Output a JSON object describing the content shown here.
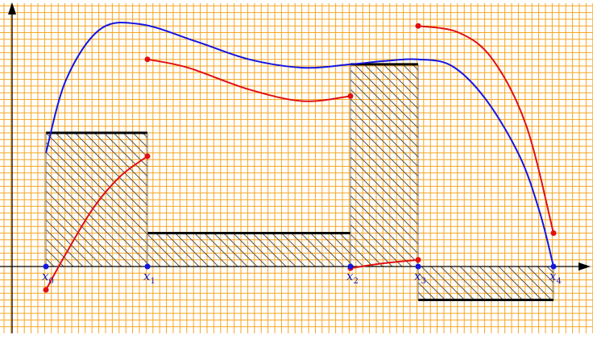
{
  "chart_data": {
    "type": "diagram",
    "title": "",
    "grid": true,
    "colors": {
      "grid": "#f5a623",
      "axes": "#000000",
      "curve": "#1515e0",
      "pieces": "#e01010",
      "bars": "#000000",
      "hatch": "#555555",
      "nodes": "#1515e0"
    },
    "nodes": [
      {
        "label": "x",
        "sub": "0",
        "x": 0
      },
      {
        "label": "x",
        "sub": "1",
        "x": 1.5
      },
      {
        "label": "x",
        "sub": "2",
        "x": 4.5
      },
      {
        "label": "x",
        "sub": "3",
        "x": 5.5
      },
      {
        "label": "x",
        "sub": "4",
        "x": 7.5
      }
    ],
    "curve": [
      [
        0,
        3.4
      ],
      [
        0.3,
        5.6
      ],
      [
        0.8,
        7.1
      ],
      [
        1.4,
        7.25
      ],
      [
        2.2,
        6.75
      ],
      [
        3.0,
        6.2
      ],
      [
        3.8,
        5.95
      ],
      [
        4.5,
        6.05
      ],
      [
        5.0,
        6.15
      ],
      [
        5.5,
        6.2
      ],
      [
        6.0,
        6.0
      ],
      [
        6.5,
        5.0
      ],
      [
        7.0,
        3.3
      ],
      [
        7.3,
        1.6
      ],
      [
        7.5,
        0
      ]
    ],
    "pieces": [
      {
        "points": [
          [
            0,
            -0.7
          ],
          [
            0.3,
            0.4
          ],
          [
            0.7,
            1.75
          ],
          [
            1.1,
            2.7
          ],
          [
            1.5,
            3.3
          ]
        ]
      },
      {
        "points": [
          [
            1.5,
            6.2
          ],
          [
            2.1,
            5.95
          ],
          [
            3.0,
            5.3
          ],
          [
            3.8,
            4.95
          ],
          [
            4.5,
            5.1
          ]
        ]
      },
      {
        "points": [
          [
            4.5,
            -0.05
          ],
          [
            5.0,
            0.1
          ],
          [
            5.5,
            0.2
          ]
        ]
      },
      {
        "points": [
          [
            5.5,
            7.2
          ],
          [
            6.1,
            7.0
          ],
          [
            6.6,
            6.2
          ],
          [
            7.1,
            4.2
          ],
          [
            7.5,
            1.0
          ]
        ]
      }
    ],
    "bars": [
      {
        "x0": 0,
        "x1": 1.5,
        "value": 4.0
      },
      {
        "x0": 1.5,
        "x1": 4.5,
        "value": 1.0
      },
      {
        "x0": 4.5,
        "x1": 5.5,
        "value": 6.05
      },
      {
        "x0": 5.5,
        "x1": 7.5,
        "value": -1.0
      }
    ]
  }
}
